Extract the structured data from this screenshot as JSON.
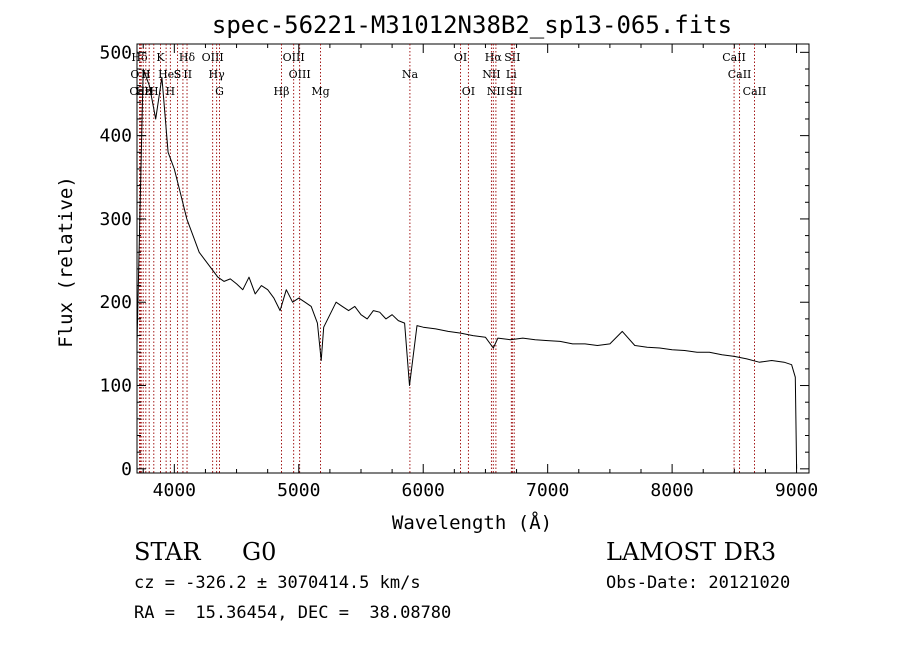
{
  "chart_data": {
    "type": "line",
    "title": "spec-56221-M31012N38B2_sp13-065.fits",
    "xlabel": "Wavelength (Å)",
    "ylabel": "Flux (relative)",
    "xlim": [
      3700,
      9100
    ],
    "ylim": [
      -5,
      510
    ],
    "x_ticks": [
      4000,
      5000,
      6000,
      7000,
      8000,
      9000
    ],
    "y_ticks": [
      0,
      100,
      200,
      300,
      400,
      500
    ],
    "x_tick_labels": [
      "4000",
      "5000",
      "6000",
      "7000",
      "8000",
      "9000"
    ],
    "y_tick_labels": [
      "0",
      "100",
      "200",
      "300",
      "400",
      "500"
    ],
    "series": [
      {
        "name": "flux",
        "x": [
          3700,
          3750,
          3800,
          3850,
          3900,
          3950,
          4000,
          4050,
          4100,
          4150,
          4200,
          4250,
          4300,
          4350,
          4400,
          4450,
          4500,
          4550,
          4600,
          4650,
          4700,
          4750,
          4800,
          4850,
          4900,
          4950,
          5000,
          5050,
          5100,
          5150,
          5180,
          5200,
          5250,
          5300,
          5350,
          5400,
          5450,
          5500,
          5550,
          5600,
          5650,
          5700,
          5750,
          5800,
          5850,
          5890,
          5950,
          6000,
          6100,
          6200,
          6300,
          6400,
          6500,
          6563,
          6600,
          6700,
          6800,
          6900,
          7000,
          7100,
          7200,
          7300,
          7400,
          7500,
          7600,
          7700,
          7800,
          7900,
          8000,
          8100,
          8200,
          8300,
          8400,
          8500,
          8600,
          8700,
          8800,
          8900,
          8960,
          8990,
          9000
        ],
        "y": [
          150,
          480,
          460,
          420,
          470,
          380,
          360,
          330,
          300,
          280,
          260,
          250,
          240,
          230,
          225,
          228,
          222,
          215,
          230,
          210,
          220,
          215,
          205,
          190,
          215,
          200,
          205,
          200,
          195,
          175,
          130,
          170,
          185,
          200,
          195,
          190,
          195,
          185,
          180,
          190,
          188,
          180,
          185,
          178,
          175,
          100,
          172,
          170,
          168,
          165,
          163,
          160,
          158,
          145,
          157,
          155,
          157,
          155,
          154,
          153,
          150,
          150,
          148,
          150,
          165,
          148,
          146,
          145,
          143,
          142,
          140,
          140,
          137,
          135,
          132,
          128,
          130,
          128,
          125,
          110,
          0
        ]
      }
    ],
    "lines": [
      {
        "label": "Hδ",
        "x": 3720,
        "row": 0
      },
      {
        "label": "O II",
        "x": 3727,
        "row": 1
      },
      {
        "label": "CaII",
        "x": 3734,
        "row": 2
      },
      {
        "label": "Hε",
        "x": 3750,
        "row": 2
      },
      {
        "label": "H",
        "x": 3771,
        "row": 1
      },
      {
        "label": "H",
        "x": 3798,
        "row": 2
      },
      {
        "label": "H",
        "x": 3835,
        "row": 2
      },
      {
        "label": "K",
        "x": 3889,
        "row": 0
      },
      {
        "label": "He",
        "x": 3934,
        "row": 1
      },
      {
        "label": "H",
        "x": 3968,
        "row": 2
      },
      {
        "label": "S",
        "x": 4026,
        "row": 1
      },
      {
        "label": "Hδ",
        "x": 4102,
        "row": 0
      },
      {
        "label": "S II",
        "x": 4069,
        "row": 1
      },
      {
        "label": "OIII",
        "x": 4308,
        "row": 0
      },
      {
        "label": "Hγ",
        "x": 4340,
        "row": 1
      },
      {
        "label": "G",
        "x": 4363,
        "row": 2
      },
      {
        "label": "Hβ",
        "x": 4861,
        "row": 2
      },
      {
        "label": "OIII",
        "x": 4959,
        "row": 0
      },
      {
        "label": "OIII",
        "x": 5007,
        "row": 1
      },
      {
        "label": "Mg",
        "x": 5175,
        "row": 2
      },
      {
        "label": "Na",
        "x": 5893,
        "row": 1
      },
      {
        "label": "OI",
        "x": 6300,
        "row": 0
      },
      {
        "label": "OI",
        "x": 6363,
        "row": 2
      },
      {
        "label": "Hα",
        "x": 6563,
        "row": 0
      },
      {
        "label": "NII",
        "x": 6548,
        "row": 1
      },
      {
        "label": "NII",
        "x": 6584,
        "row": 2
      },
      {
        "label": "SII",
        "x": 6716,
        "row": 0
      },
      {
        "label": "Li",
        "x": 6708,
        "row": 1
      },
      {
        "label": "SII",
        "x": 6731,
        "row": 2
      },
      {
        "label": "CaII",
        "x": 8498,
        "row": 0
      },
      {
        "label": "CaII",
        "x": 8542,
        "row": 1
      },
      {
        "label": "CaII",
        "x": 8662,
        "row": 2
      }
    ],
    "line_color": "#990000",
    "grid": false
  },
  "info": {
    "class": "STAR",
    "subclass": "G0",
    "survey": "LAMOST DR3",
    "velocity": "cz = -326.2 ± 3070414.5 km/s",
    "obs_date": "Obs-Date: 20121020",
    "coords": "RA =  15.36454, DEC =  38.08780"
  }
}
